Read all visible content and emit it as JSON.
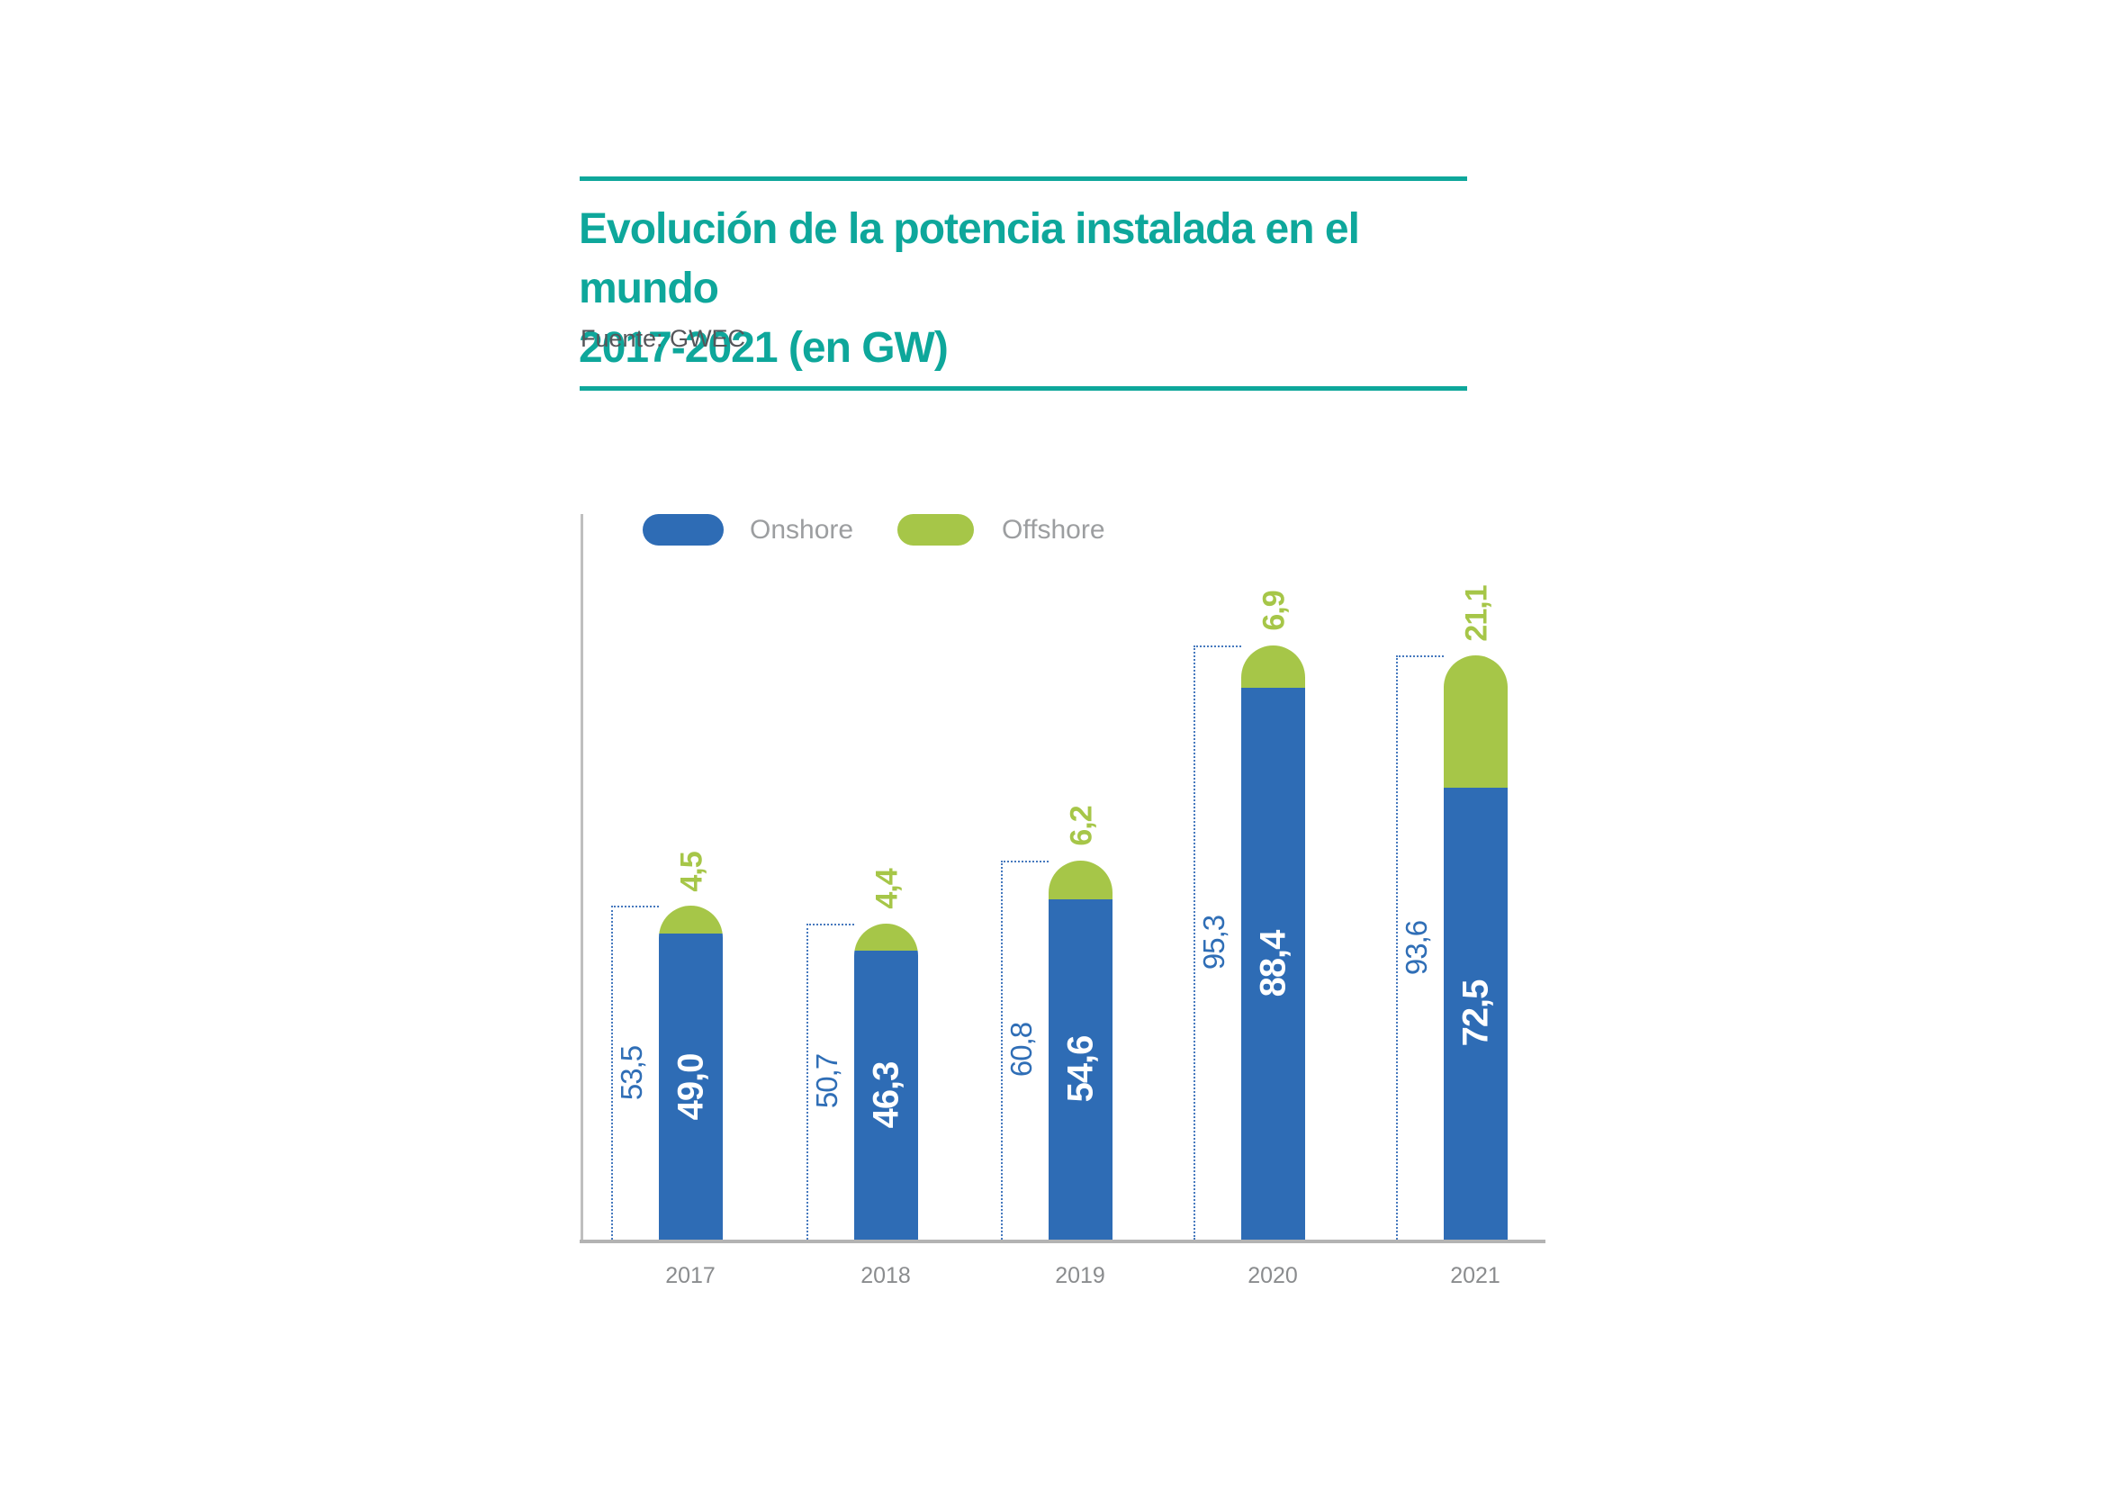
{
  "header": {
    "title_line1": "Evolución de la potencia instalada en el mundo",
    "title_line2": "2017-2021 (en GW)",
    "source": "Fuente: GWEC"
  },
  "legend": {
    "items": [
      {
        "label": "Onshore",
        "color": "#2E6CB5"
      },
      {
        "label": "Offshore",
        "color": "#A6C648"
      }
    ]
  },
  "chart_data": {
    "type": "bar",
    "stacked": true,
    "title": "Evolución de la potencia instalada en el mundo 2017-2021 (en GW)",
    "source": "Fuente: GWEC",
    "value_unit": "GW",
    "xlabel": "",
    "ylabel": "",
    "grid": false,
    "legend_position": "top-left",
    "bar_style": "rounded-top",
    "categories": [
      "2017",
      "2018",
      "2019",
      "2020",
      "2021"
    ],
    "series": [
      {
        "name": "Onshore",
        "color": "#2E6CB5",
        "values": [
          49.0,
          46.3,
          54.6,
          88.4,
          72.5
        ],
        "labels": [
          "49,0",
          "46,3",
          "54,6",
          "88,4",
          "72,5"
        ]
      },
      {
        "name": "Offshore",
        "color": "#A6C648",
        "values": [
          4.5,
          4.4,
          6.2,
          6.9,
          21.1
        ],
        "labels": [
          "4,5",
          "4,4",
          "6,2",
          "6,9",
          "21,1"
        ]
      }
    ],
    "totals": [
      53.5,
      50.7,
      60.8,
      95.3,
      93.6
    ],
    "total_labels": [
      "53,5",
      "50,7",
      "60,8",
      "95,3",
      "93,6"
    ]
  },
  "colors": {
    "accent_teal": "#0EA79B",
    "onshore_blue": "#2E6CB5",
    "offshore_green": "#A6C648",
    "bracket_dotted_blue": "#4679BE",
    "total_label_blue": "#2F6EB6",
    "axis_gray": "#B3B3B3",
    "year_label_gray": "#8A8C8E",
    "legend_label_gray": "#9C9EA0",
    "source_gray": "#55565A"
  }
}
